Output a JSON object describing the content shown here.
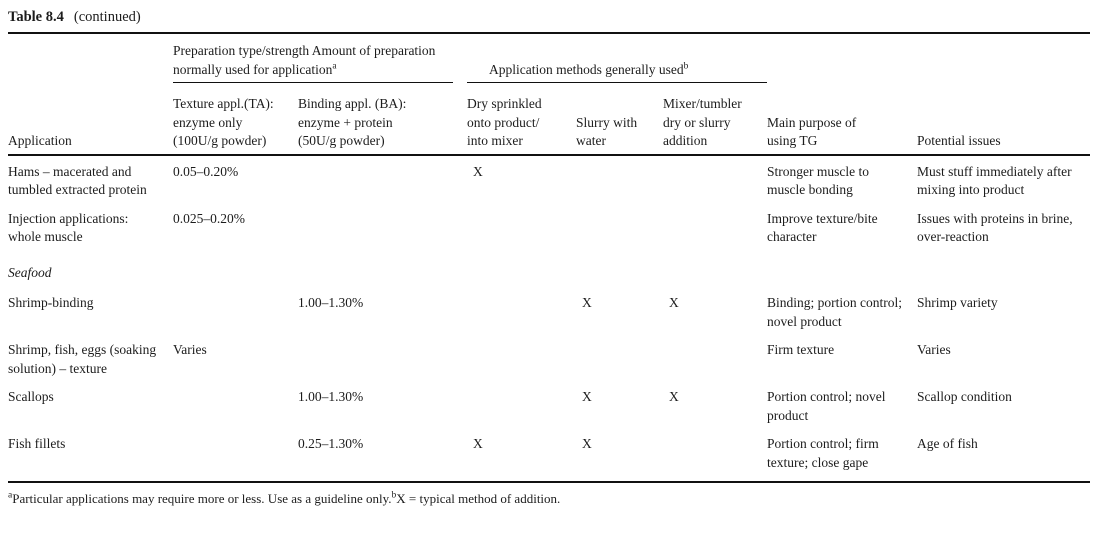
{
  "caption": {
    "table_number": "Table 8.4",
    "continued": "(continued)"
  },
  "header": {
    "groups": {
      "preparation": {
        "text": "Preparation type/strength Amount of preparation normally used for application",
        "sup": "a"
      },
      "methods": {
        "text": "Application methods generally used",
        "sup": "b"
      }
    },
    "columns": [
      {
        "lines": [
          "Application"
        ]
      },
      {
        "lines": [
          "Texture appl.(TA):",
          "enzyme only",
          "(100U/g powder)"
        ]
      },
      {
        "lines": [
          "Binding appl. (BA):",
          "enzyme + protein",
          "(50U/g powder)"
        ]
      },
      {
        "lines": [
          "Dry sprinkled",
          "onto product/",
          "into mixer"
        ]
      },
      {
        "lines": [
          "Slurry with",
          "water"
        ]
      },
      {
        "lines": [
          "Mixer/tumbler",
          "dry or slurry",
          "addition"
        ]
      },
      {
        "lines": [
          "Main purpose of",
          "using TG"
        ]
      },
      {
        "lines": [
          "Potential issues"
        ]
      }
    ]
  },
  "rows": [
    {
      "application": "Hams – macerated and tumbled extracted protein",
      "ta": "0.05–0.20%",
      "ba": "",
      "dry": "X",
      "slurry": "",
      "mixer": "",
      "purpose": "Stronger muscle to muscle bonding",
      "issues": "Must stuff immediately after mixing into product"
    },
    {
      "application": "Injection applications: whole muscle",
      "ta": "0.025–0.20%",
      "ba": "",
      "dry": "",
      "slurry": "",
      "mixer": "",
      "purpose": "Improve texture/bite character",
      "issues": "Issues with proteins in brine, over-reaction"
    },
    {
      "section": "Seafood"
    },
    {
      "application": "Shrimp-binding",
      "ta": "",
      "ba": "1.00–1.30%",
      "dry": "",
      "slurry": "X",
      "mixer": "X",
      "purpose": "Binding; portion control; novel product",
      "issues": "Shrimp variety"
    },
    {
      "application": "Shrimp, fish, eggs (soaking solution) – texture",
      "ta": "Varies",
      "ba": "",
      "dry": "",
      "slurry": "",
      "mixer": "",
      "purpose": "Firm texture",
      "issues": "Varies"
    },
    {
      "application": "Scallops",
      "ta": "",
      "ba": "1.00–1.30%",
      "dry": "",
      "slurry": "X",
      "mixer": "X",
      "purpose": "Portion control; novel product",
      "issues": "Scallop condition"
    },
    {
      "application": "Fish fillets",
      "ta": "",
      "ba": "0.25–1.30%",
      "dry": "X",
      "slurry": "X",
      "mixer": "",
      "purpose": "Portion control; firm texture; close gape",
      "issues": "Age of fish"
    }
  ],
  "footnote": {
    "sup_a": "a",
    "note_a": "Particular applications may require more or less. Use as a guideline only.",
    "sup_b": "b",
    "note_b": "X = typical method of addition."
  }
}
